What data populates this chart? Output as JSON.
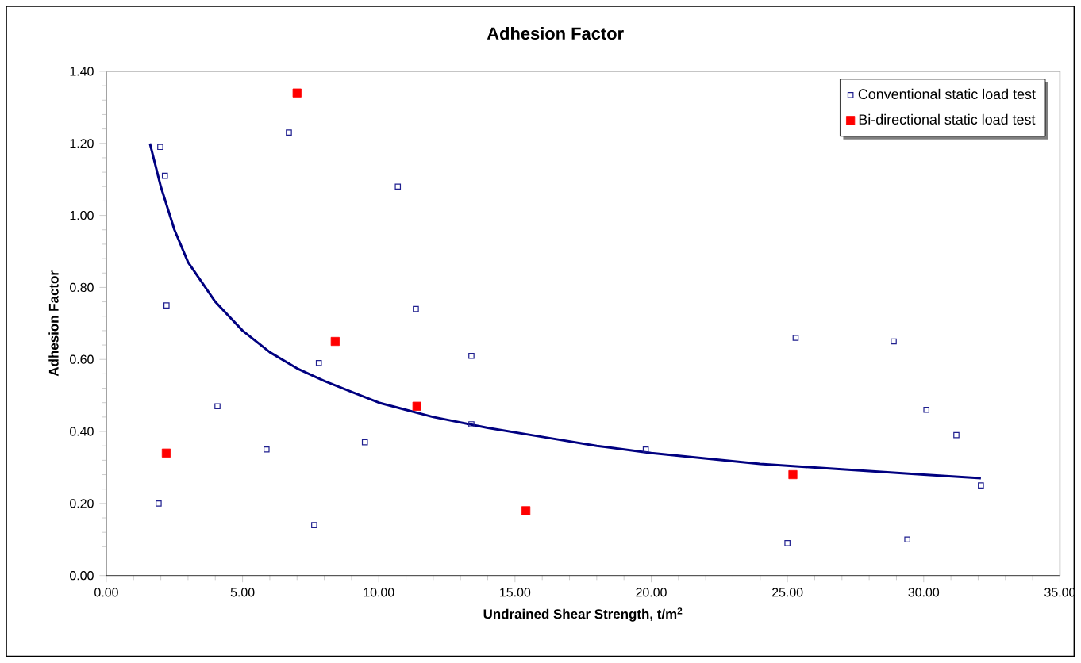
{
  "chart_data": {
    "type": "scatter",
    "title": "Adhesion Factor",
    "xlabel": "Undrained Shear Strength, t/m$^{2}$",
    "ylabel": "Adhesion Factor",
    "xlim": [
      0,
      35
    ],
    "ylim": [
      0,
      1.4
    ],
    "xticks": [
      {
        "value": 0,
        "label": "0.00"
      },
      {
        "value": 5,
        "label": "5.00"
      },
      {
        "value": 10,
        "label": "10.00"
      },
      {
        "value": 15,
        "label": "15.00"
      },
      {
        "value": 20,
        "label": "20.00"
      },
      {
        "value": 25,
        "label": "25.00"
      },
      {
        "value": 30,
        "label": "30.00"
      },
      {
        "value": 35,
        "label": "35.00"
      }
    ],
    "yticks": [
      {
        "value": 0,
        "label": "0.00"
      },
      {
        "value": 0.2,
        "label": "0.20"
      },
      {
        "value": 0.4,
        "label": "0.40"
      },
      {
        "value": 0.6,
        "label": "0.60"
      },
      {
        "value": 0.8,
        "label": "0.80"
      },
      {
        "value": 1.0,
        "label": "1.00"
      },
      {
        "value": 1.2,
        "label": "1.20"
      },
      {
        "value": 1.4,
        "label": "1.40"
      }
    ],
    "grid": false,
    "legend": "top right",
    "series": [
      {
        "name": "Conventional static load test",
        "marker": "square",
        "color": "#1f1f8f",
        "x": [
          1.98,
          2.15,
          2.21,
          4.08,
          1.92,
          5.88,
          7.63,
          6.7,
          7.8,
          9.49,
          10.7,
          11.36,
          13.4,
          13.4,
          19.8,
          25.3,
          25.0,
          28.9,
          30.1,
          29.4,
          31.2,
          32.1
        ],
        "values": [
          1.19,
          1.11,
          0.75,
          0.47,
          0.2,
          0.35,
          0.14,
          1.23,
          0.59,
          0.37,
          1.08,
          0.74,
          0.61,
          0.42,
          0.35,
          0.66,
          0.09,
          0.65,
          0.46,
          0.1,
          0.39,
          0.25
        ]
      },
      {
        "name": "Bi-directional static load test",
        "marker": "square",
        "color": "#ff0000",
        "x": [
          7.0,
          8.4,
          11.4,
          2.2,
          15.4,
          25.2
        ],
        "values": [
          1.34,
          0.65,
          0.47,
          0.34,
          0.18,
          0.28
        ]
      },
      {
        "type": "line",
        "marker": "none",
        "line_style": "solid",
        "color": "#000080",
        "x": [
          1.6,
          2,
          2.5,
          3,
          4,
          5,
          6,
          7,
          8,
          9,
          10,
          12,
          14,
          16,
          18,
          20,
          22,
          24,
          26,
          28,
          30,
          32.1
        ],
        "values": [
          1.2,
          1.08,
          0.96,
          0.87,
          0.76,
          0.68,
          0.62,
          0.575,
          0.54,
          0.51,
          0.48,
          0.44,
          0.41,
          0.385,
          0.36,
          0.34,
          0.325,
          0.31,
          0.3,
          0.29,
          0.28,
          0.27
        ]
      }
    ]
  }
}
